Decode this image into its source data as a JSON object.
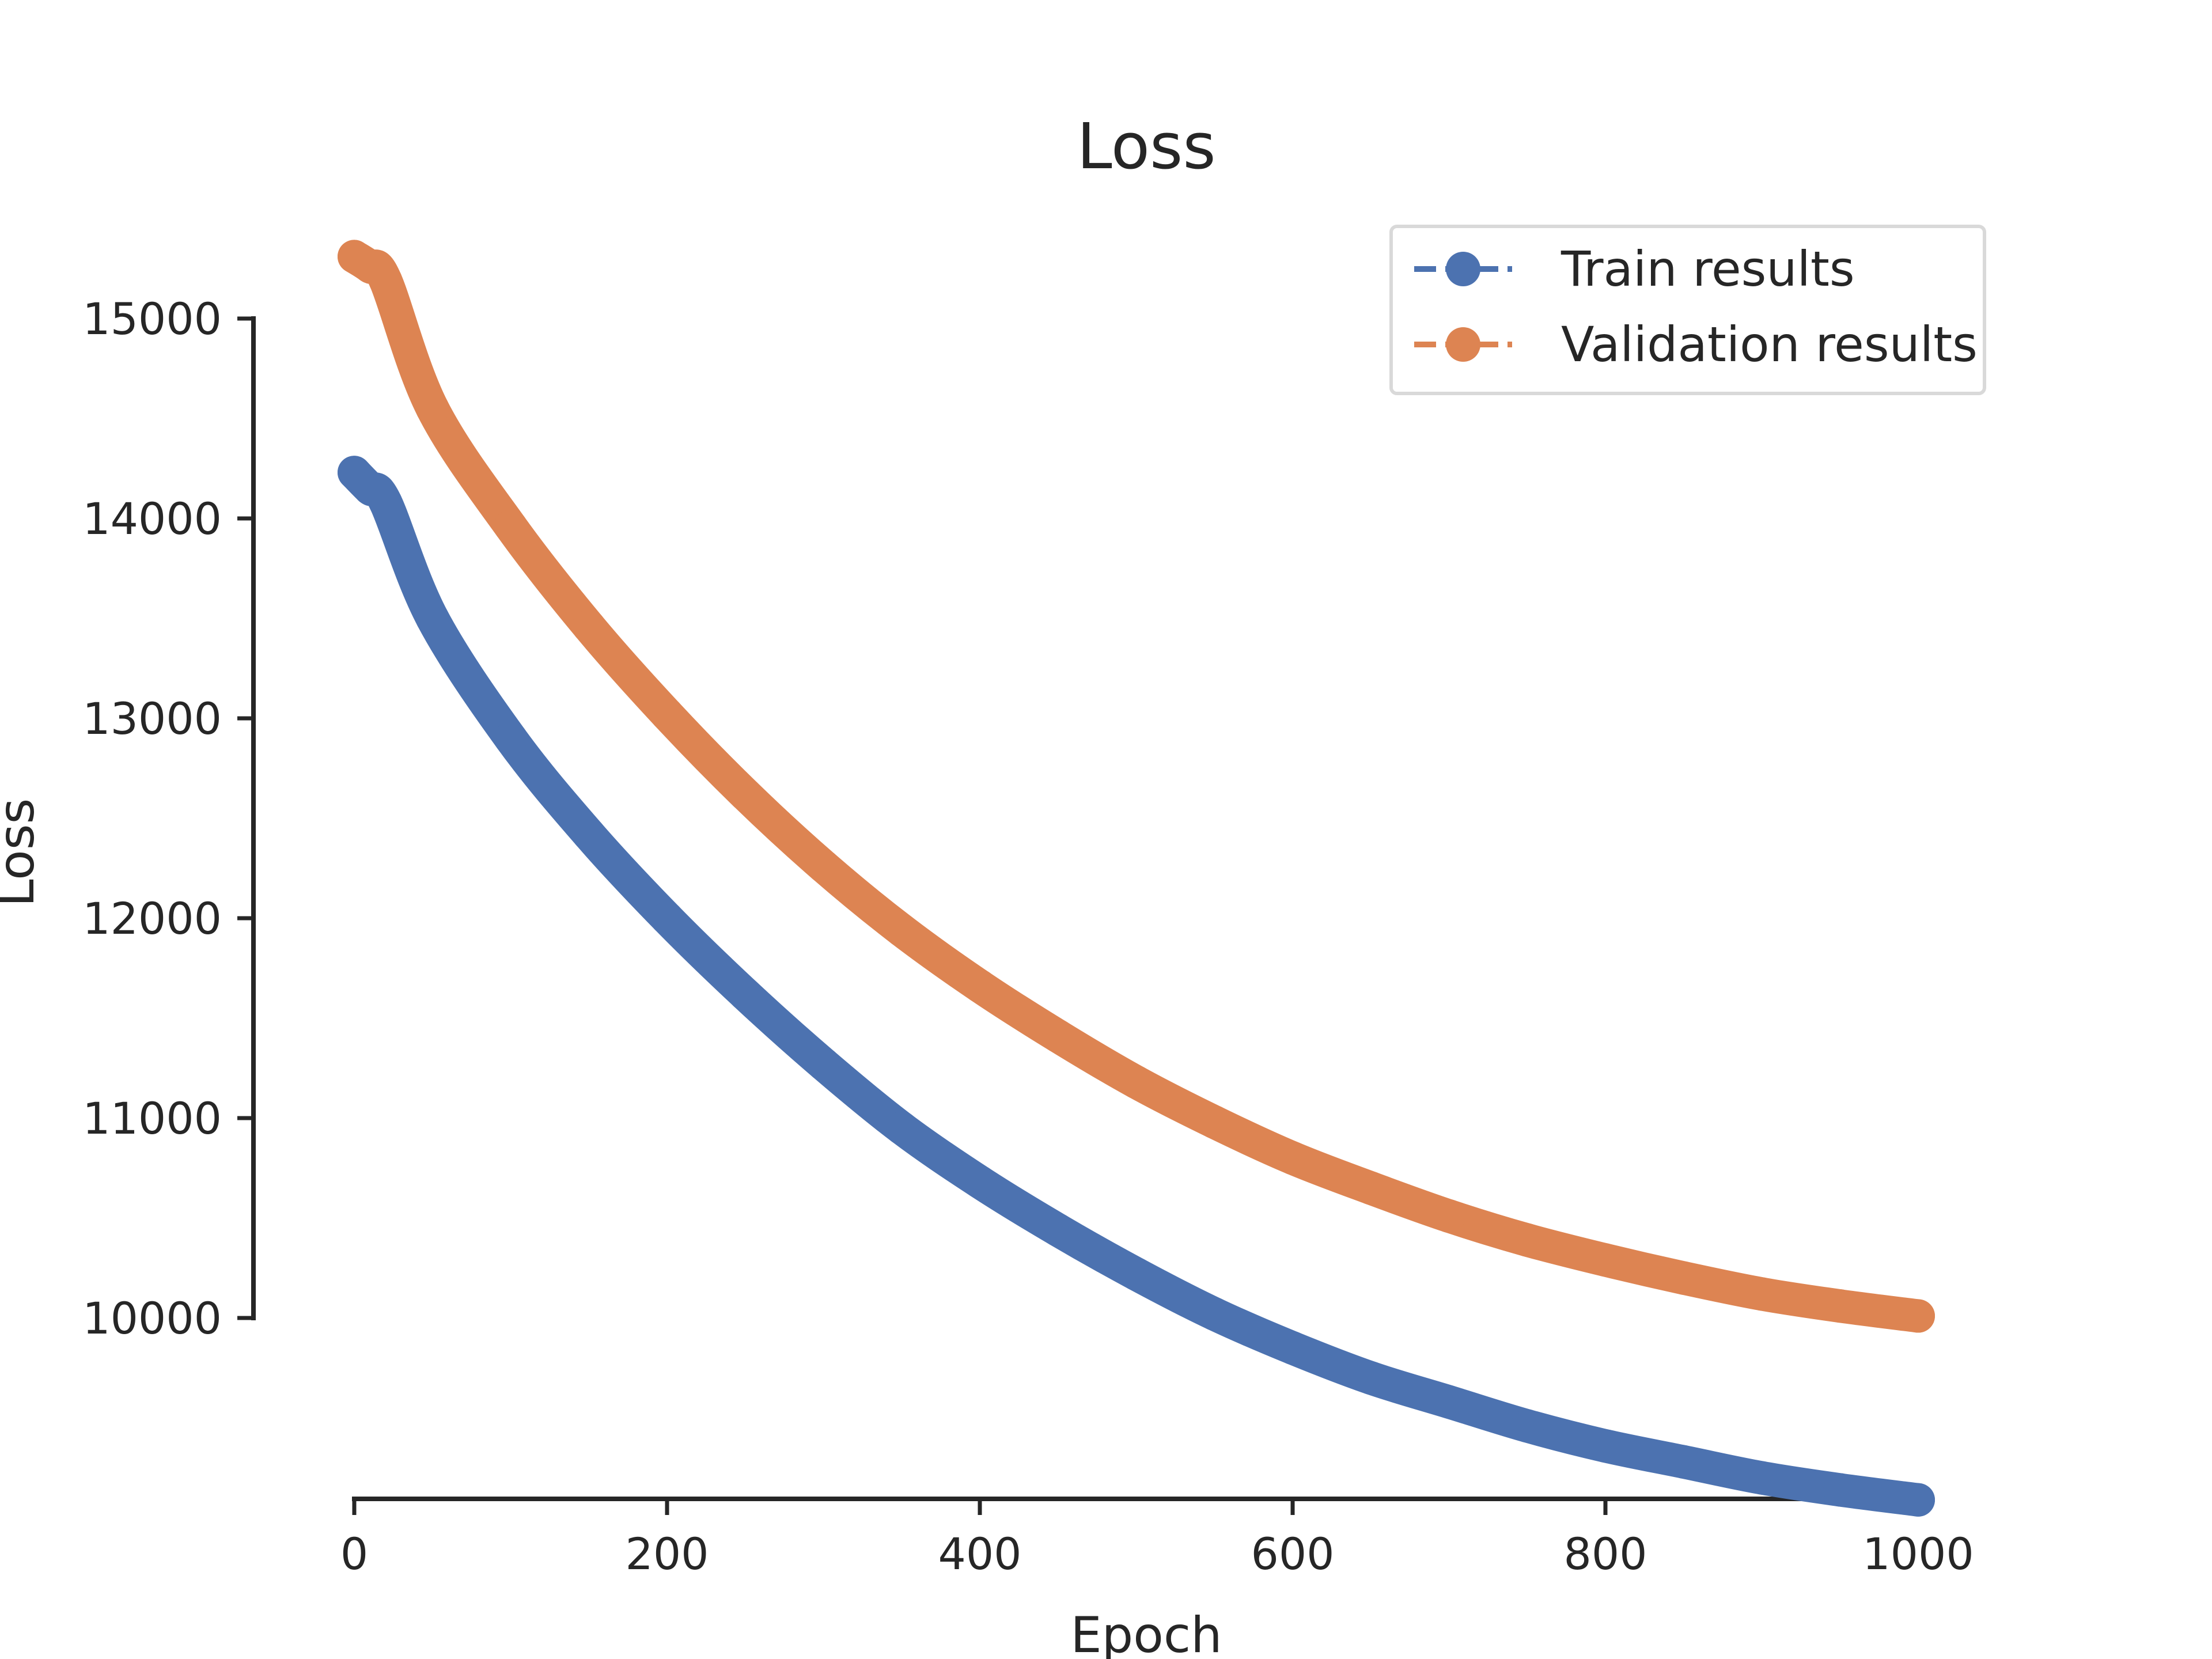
{
  "chart_data": {
    "type": "line",
    "title": "Loss",
    "xlabel": "Epoch",
    "ylabel": "Loss",
    "xlim": [
      0,
      1000
    ],
    "ylim": [
      9500,
      15300
    ],
    "xticks": [
      0,
      200,
      400,
      600,
      800,
      1000
    ],
    "xtick_labels": [
      "0",
      "200",
      "400",
      "600",
      "800",
      "1000"
    ],
    "yticks": [
      10000,
      11000,
      12000,
      13000,
      14000,
      15000
    ],
    "ytick_labels": [
      "10000",
      "11000",
      "12000",
      "13000",
      "14000",
      "15000"
    ],
    "grid": false,
    "legend_position": "top-right",
    "x": [
      0,
      10,
      20,
      50,
      100,
      150,
      200,
      250,
      300,
      350,
      400,
      450,
      500,
      550,
      600,
      650,
      700,
      750,
      800,
      850,
      900,
      950,
      1000
    ],
    "series": [
      {
        "name": "Train results",
        "color": "#4c72b0",
        "marker": "circle",
        "linestyle": "dashed",
        "values": [
          14230,
          14150,
          14080,
          13500,
          12900,
          12420,
          12000,
          11620,
          11270,
          10950,
          10680,
          10440,
          10220,
          10020,
          9850,
          9700,
          9580,
          9460,
          9360,
          9280,
          9200,
          9140,
          9090
        ]
      },
      {
        "name": "Validation results",
        "color": "#dd8452",
        "marker": "circle",
        "linestyle": "dashed",
        "values": [
          15310,
          15260,
          15190,
          14550,
          13960,
          13460,
          13020,
          12620,
          12260,
          11940,
          11660,
          11410,
          11180,
          10980,
          10800,
          10650,
          10510,
          10390,
          10290,
          10200,
          10120,
          10060,
          10010
        ]
      }
    ]
  }
}
